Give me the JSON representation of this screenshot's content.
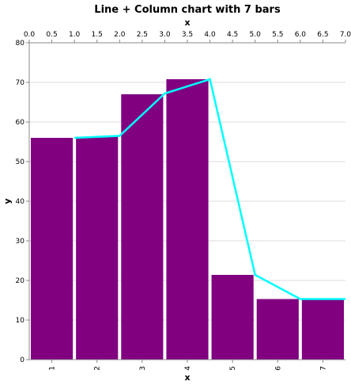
{
  "chart_data": {
    "type": "bar+line",
    "title": "Line + Column chart with 7 bars",
    "bar_x_label": "x",
    "line_x_label": "x",
    "ylabel": "y",
    "ylim": [
      0,
      80
    ],
    "y_ticks": [
      0,
      10,
      20,
      30,
      40,
      50,
      60,
      70,
      80
    ],
    "categories": [
      "1",
      "2",
      "3",
      "4",
      "5",
      "6",
      "7"
    ],
    "bar_values": [
      56,
      56.3,
      67,
      70.8,
      21.4,
      15.3,
      15.3
    ],
    "bar_color": "#800080",
    "line_x_range": [
      0,
      7.0
    ],
    "line_x_ticks": [
      "0.0",
      "0.5",
      "1.0",
      "1.5",
      "2.0",
      "2.5",
      "3.0",
      "3.5",
      "4.0",
      "4.5",
      "5.0",
      "5.5",
      "6.0",
      "6.5",
      "7.0"
    ],
    "line_points": [
      {
        "x": 1.0,
        "y": 56.0
      },
      {
        "x": 2.0,
        "y": 56.5
      },
      {
        "x": 3.0,
        "y": 67.2
      },
      {
        "x": 4.0,
        "y": 70.8
      },
      {
        "x": 5.0,
        "y": 21.4
      },
      {
        "x": 6.0,
        "y": 15.3
      },
      {
        "x": 7.0,
        "y": 15.3
      }
    ],
    "line_color": "#00ffff",
    "grid": true
  }
}
